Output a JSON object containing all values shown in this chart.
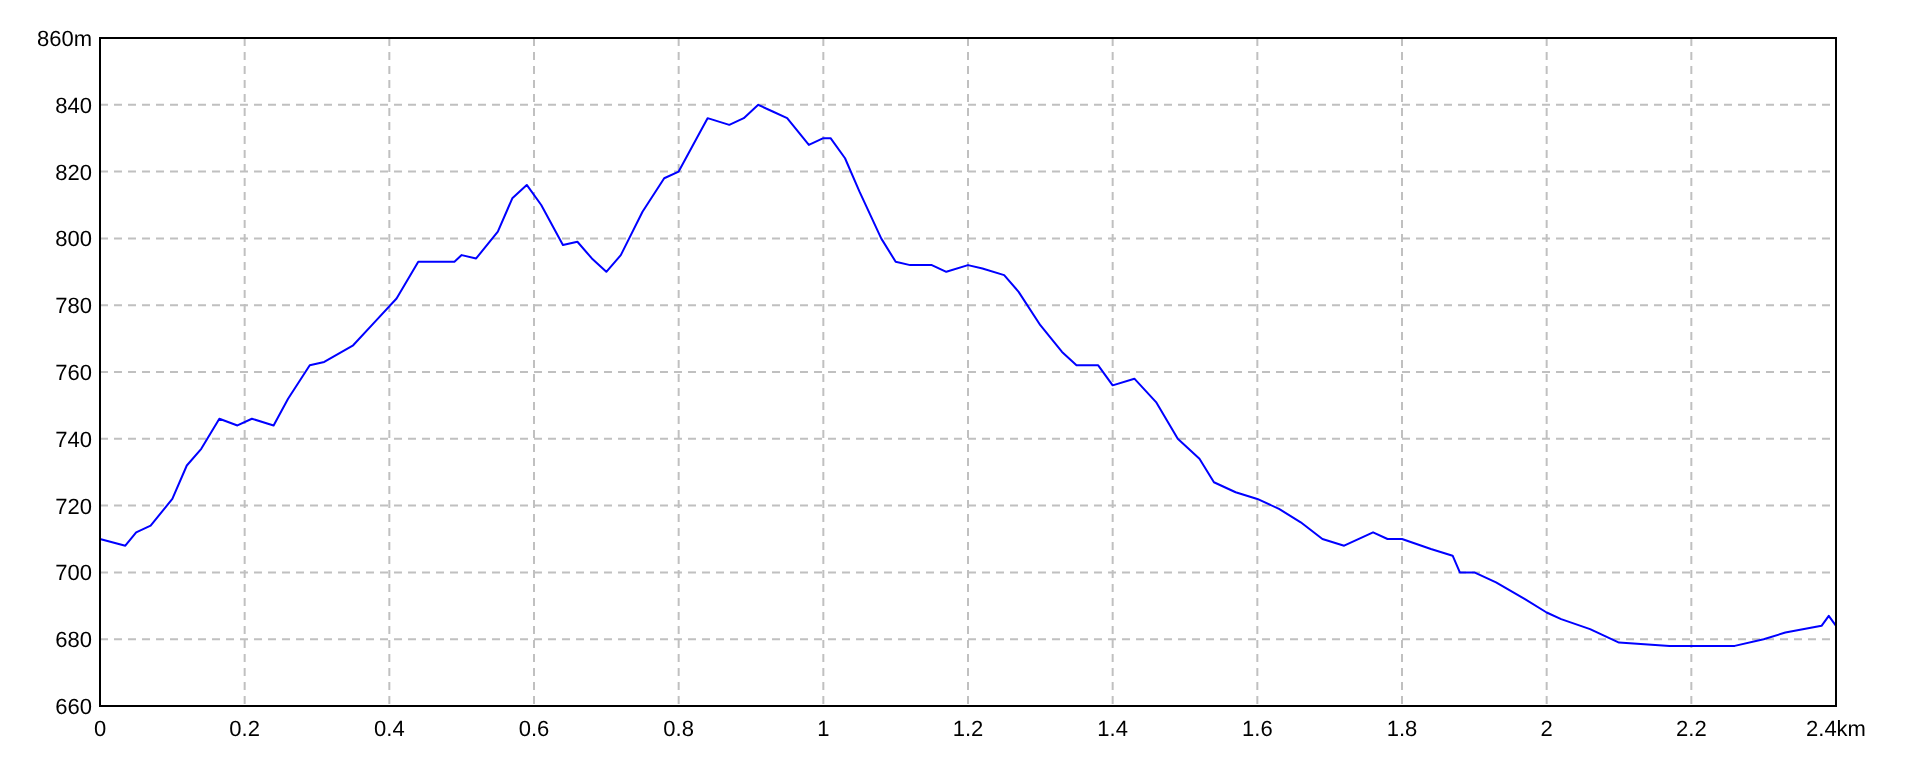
{
  "chart_data": {
    "type": "line",
    "x": [
      0,
      0.035,
      0.05,
      0.07,
      0.1,
      0.12,
      0.14,
      0.165,
      0.19,
      0.21,
      0.24,
      0.26,
      0.29,
      0.31,
      0.35,
      0.38,
      0.41,
      0.44,
      0.49,
      0.5,
      0.52,
      0.55,
      0.57,
      0.59,
      0.61,
      0.64,
      0.66,
      0.68,
      0.7,
      0.72,
      0.75,
      0.78,
      0.8,
      0.83,
      0.84,
      0.87,
      0.89,
      0.91,
      0.93,
      0.95,
      0.98,
      1.0,
      1.01,
      1.03,
      1.05,
      1.08,
      1.1,
      1.12,
      1.15,
      1.17,
      1.2,
      1.22,
      1.25,
      1.27,
      1.3,
      1.33,
      1.35,
      1.38,
      1.4,
      1.43,
      1.46,
      1.49,
      1.52,
      1.54,
      1.57,
      1.6,
      1.63,
      1.66,
      1.69,
      1.72,
      1.76,
      1.78,
      1.8,
      1.84,
      1.87,
      1.88,
      1.9,
      1.93,
      1.97,
      2.0,
      2.02,
      2.06,
      2.1,
      2.17,
      2.26,
      2.3,
      2.33,
      2.38,
      2.39,
      2.4
    ],
    "series": [
      {
        "color": "#0000ff",
        "values": [
          710,
          708,
          712,
          714,
          722,
          732,
          737,
          746,
          744,
          746,
          744,
          752,
          762,
          763,
          768,
          775,
          782,
          793,
          793,
          795,
          794,
          802,
          812,
          816,
          810,
          798,
          799,
          794,
          790,
          795,
          808,
          818,
          820,
          832,
          836,
          834,
          836,
          840,
          838,
          836,
          828,
          830,
          830,
          824,
          814,
          800,
          793,
          792,
          792,
          790,
          792,
          791,
          789,
          784,
          774,
          766,
          762,
          762,
          756,
          758,
          751,
          740,
          734,
          727,
          724,
          722,
          719,
          715,
          710,
          708,
          712,
          710,
          710,
          707,
          705,
          700,
          700,
          697,
          692,
          688,
          686,
          683,
          679,
          678,
          678,
          680,
          682,
          684,
          687,
          684
        ]
      }
    ],
    "xlim": [
      0,
      2.4
    ],
    "ylim": [
      660,
      860
    ],
    "xticks": [
      0,
      0.2,
      0.4,
      0.6,
      0.8,
      1,
      1.2,
      1.4,
      1.6,
      1.8,
      2,
      2.2,
      {
        "value": 2.4,
        "label": "2.4km"
      }
    ],
    "yticks": [
      660,
      680,
      700,
      720,
      740,
      760,
      780,
      800,
      820,
      840,
      {
        "value": 860,
        "label": "860m"
      }
    ],
    "grid": true,
    "marker": "none",
    "line_style": "solid"
  }
}
